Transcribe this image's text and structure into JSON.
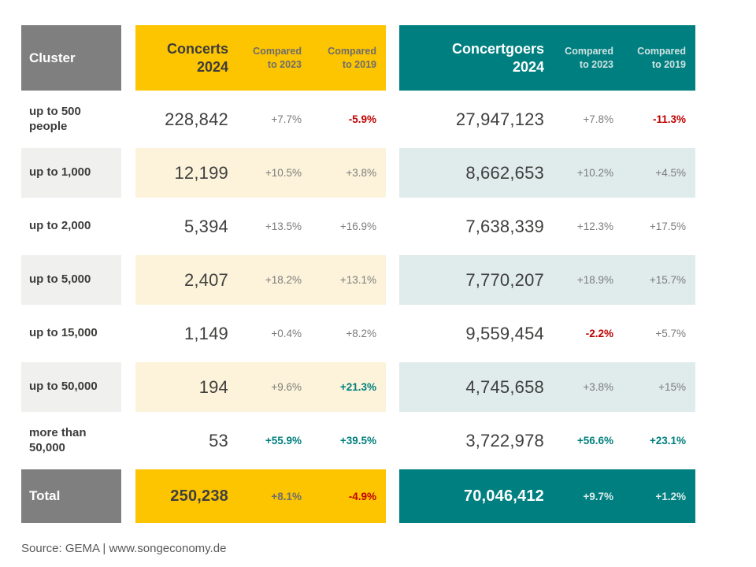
{
  "colors": {
    "yellow": "#FDC400",
    "teal": "#007F80",
    "cream_row": "#FCF3DA",
    "light_teal_row": "#DFECEB",
    "gray_box": "#7F7F7F",
    "light_gray_row": "#F0F0EF",
    "negative_red": "#C00000",
    "positive_teal": "#007F7E",
    "dark_text": "#3C3C3B"
  },
  "header": {
    "cluster": "Cluster",
    "concerts": {
      "title": "Concerts\n2024",
      "vs2023": "Compared\nto 2023",
      "vs2019": "Compared\nto 2019"
    },
    "goers": {
      "title": "Concertgoers\n2024",
      "vs2023": "Compared\nto 2023",
      "vs2019": "Compared\nto 2019"
    }
  },
  "rows": [
    {
      "cluster": "up to 500 people",
      "concerts": {
        "value": "228,842",
        "vs2023": "+7.7%",
        "vs2023_style": "gray",
        "vs2019": "-5.9%",
        "vs2019_style": "red"
      },
      "goers": {
        "value": "27,947,123",
        "vs2023": "+7.8%",
        "vs2023_style": "gray",
        "vs2019": "-11.3%",
        "vs2019_style": "red"
      }
    },
    {
      "cluster": "up to 1,000",
      "concerts": {
        "value": "12,199",
        "vs2023": "+10.5%",
        "vs2023_style": "gray",
        "vs2019": "+3.8%",
        "vs2019_style": "gray"
      },
      "goers": {
        "value": "8,662,653",
        "vs2023": "+10.2%",
        "vs2023_style": "gray",
        "vs2019": "+4.5%",
        "vs2019_style": "gray"
      }
    },
    {
      "cluster": "up to 2,000",
      "concerts": {
        "value": "5,394",
        "vs2023": "+13.5%",
        "vs2023_style": "gray",
        "vs2019": "+16.9%",
        "vs2019_style": "gray"
      },
      "goers": {
        "value": "7,638,339",
        "vs2023": "+12.3%",
        "vs2023_style": "gray",
        "vs2019": "+17.5%",
        "vs2019_style": "gray"
      }
    },
    {
      "cluster": "up to 5,000",
      "concerts": {
        "value": "2,407",
        "vs2023": "+18.2%",
        "vs2023_style": "gray",
        "vs2019": "+13.1%",
        "vs2019_style": "gray"
      },
      "goers": {
        "value": "7,770,207",
        "vs2023": "+18.9%",
        "vs2023_style": "gray",
        "vs2019": "+15.7%",
        "vs2019_style": "gray"
      }
    },
    {
      "cluster": "up to 15,000",
      "concerts": {
        "value": "1,149",
        "vs2023": "+0.4%",
        "vs2023_style": "gray",
        "vs2019": "+8.2%",
        "vs2019_style": "gray"
      },
      "goers": {
        "value": "9,559,454",
        "vs2023": "-2.2%",
        "vs2023_style": "red",
        "vs2019": "+5.7%",
        "vs2019_style": "gray"
      }
    },
    {
      "cluster": "up to 50,000",
      "concerts": {
        "value": "194",
        "vs2023": "+9.6%",
        "vs2023_style": "gray",
        "vs2019": "+21.3%",
        "vs2019_style": "teal"
      },
      "goers": {
        "value": "4,745,658",
        "vs2023": "+3.8%",
        "vs2023_style": "gray",
        "vs2019": "+15%",
        "vs2019_style": "gray"
      }
    },
    {
      "cluster": "more than 50,000",
      "concerts": {
        "value": "53",
        "vs2023": "+55.9%",
        "vs2023_style": "teal",
        "vs2019": "+39.5%",
        "vs2019_style": "teal"
      },
      "goers": {
        "value": "3,722,978",
        "vs2023": "+56.6%",
        "vs2023_style": "teal",
        "vs2019": "+23.1%",
        "vs2019_style": "teal"
      }
    },
    {
      "cluster": "Total",
      "concerts": {
        "value": "250,238",
        "vs2023": "+8.1%",
        "vs2023_style": "grayb",
        "vs2019": "-4.9%",
        "vs2019_style": "red"
      },
      "goers": {
        "value": "70,046,412",
        "vs2023": "+9.7%",
        "vs2023_style": "lightb",
        "vs2019": "+1.2%",
        "vs2019_style": "lightb"
      }
    }
  ],
  "footer": {
    "source": "Source: GEMA | www.songeconomy.de"
  },
  "chart_data": {
    "type": "table",
    "columns": [
      "Cluster",
      "Concerts 2024",
      "Compared to 2023",
      "Compared to 2019",
      "Concertgoers 2024",
      "Compared to 2023",
      "Compared to 2019"
    ],
    "rows": [
      [
        "up to 500 people",
        "228,842",
        "+7.7%",
        "-5.9%",
        "27,947,123",
        "+7.8%",
        "-11.3%"
      ],
      [
        "up to 1,000",
        "12,199",
        "+10.5%",
        "+3.8%",
        "8,662,653",
        "+10.2%",
        "+4.5%"
      ],
      [
        "up to 2,000",
        "5,394",
        "+13.5%",
        "+16.9%",
        "7,638,339",
        "+12.3%",
        "+17.5%"
      ],
      [
        "up to 5,000",
        "2,407",
        "+18.2%",
        "+13.1%",
        "7,770,207",
        "+18.9%",
        "+15.7%"
      ],
      [
        "up to 15,000",
        "1,149",
        "+0.4%",
        "+8.2%",
        "9,559,454",
        "-2.2%",
        "+5.7%"
      ],
      [
        "up to 50,000",
        "194",
        "+9.6%",
        "+21.3%",
        "4,745,658",
        "+3.8%",
        "+15%"
      ],
      [
        "more than 50,000",
        "53",
        "+55.9%",
        "+39.5%",
        "3,722,978",
        "+56.6%",
        "+23.1%"
      ],
      [
        "Total",
        "250,238",
        "+8.1%",
        "-4.9%",
        "70,046,412",
        "+9.7%",
        "+1.2%"
      ]
    ],
    "legend_position": "none",
    "grid": false
  }
}
